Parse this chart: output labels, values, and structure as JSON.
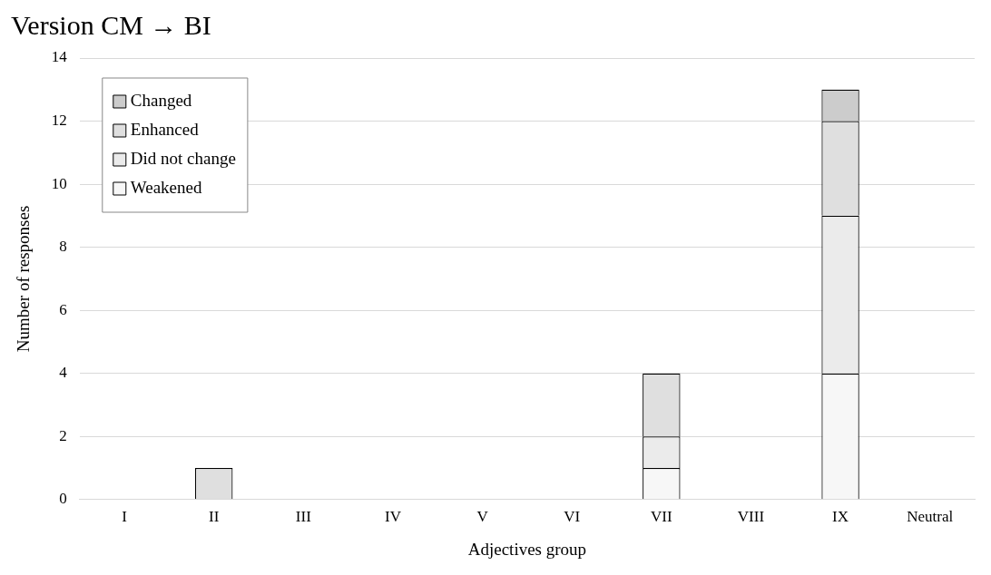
{
  "chart_data": {
    "type": "bar",
    "title": "Version CM → BI",
    "xlabel": "Adjectives group",
    "ylabel": "Number of responses",
    "categories": [
      "I",
      "II",
      "III",
      "IV",
      "V",
      "VI",
      "VII",
      "VIII",
      "IX",
      "Neutral"
    ],
    "stacked": true,
    "series": [
      {
        "name": "Weakened",
        "color": "#f7f7f7",
        "values": [
          0,
          0,
          0,
          0,
          0,
          0,
          1,
          0,
          4,
          0
        ]
      },
      {
        "name": "Did not change",
        "color": "#ebebeb",
        "values": [
          0,
          0,
          0,
          0,
          0,
          0,
          1,
          0,
          5,
          0
        ]
      },
      {
        "name": "Enhanced",
        "color": "#dfdfdf",
        "values": [
          0,
          1,
          0,
          0,
          0,
          0,
          2,
          0,
          3,
          0
        ]
      },
      {
        "name": "Changed",
        "color": "#cccccc",
        "values": [
          0,
          0,
          0,
          0,
          0,
          0,
          0,
          0,
          1,
          0
        ]
      }
    ],
    "ylim": [
      0,
      14
    ],
    "yticks": [
      0,
      2,
      4,
      6,
      8,
      10,
      12,
      14
    ],
    "grid": "y",
    "legend": "top left"
  }
}
